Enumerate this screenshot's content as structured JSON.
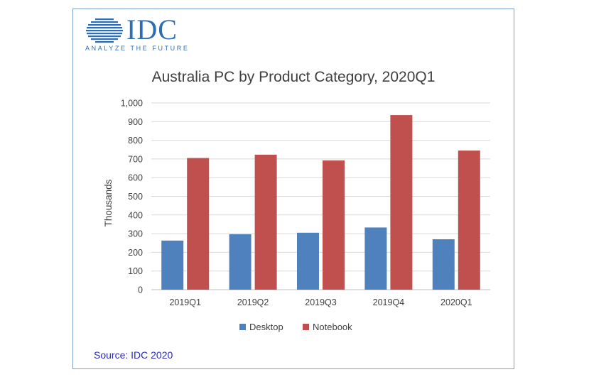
{
  "logo": {
    "wordmark": "IDC",
    "tagline": "ANALYZE THE FUTURE",
    "color": "#2d6db5"
  },
  "footer": {
    "source": "Source: IDC 2020"
  },
  "chart_data": {
    "type": "bar",
    "title": "Australia PC by Product Category, 2020Q1",
    "xlabel": "",
    "ylabel": "Thousands",
    "ylim": [
      0,
      1000
    ],
    "ytick_step": 100,
    "ytick_labels": [
      "0",
      "100",
      "200",
      "300",
      "400",
      "500",
      "600",
      "700",
      "800",
      "900",
      "1,000"
    ],
    "grid": true,
    "legend_position": "bottom",
    "categories": [
      "2019Q1",
      "2019Q2",
      "2019Q3",
      "2019Q4",
      "2020Q1"
    ],
    "series": [
      {
        "name": "Desktop",
        "color": "#4f81bd",
        "values": [
          263,
          297,
          305,
          333,
          270
        ]
      },
      {
        "name": "Notebook",
        "color": "#c0504d",
        "values": [
          705,
          723,
          692,
          935,
          745
        ]
      }
    ]
  }
}
